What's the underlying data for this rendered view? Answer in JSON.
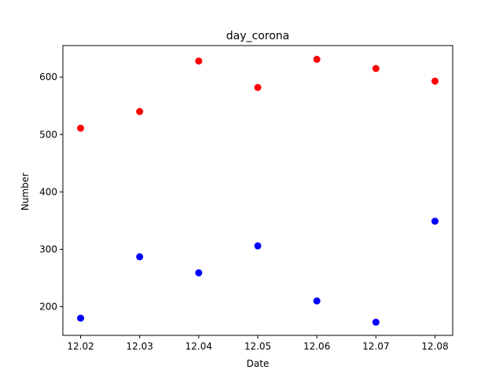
{
  "chart_data": {
    "type": "scatter",
    "title": "day_corona",
    "xlabel": "Date",
    "ylabel": "Number",
    "xlim": [
      12.017,
      12.083
    ],
    "ylim": [
      150,
      655
    ],
    "xticks": [
      "12.02",
      "12.03",
      "12.04",
      "12.05",
      "12.06",
      "12.07",
      "12.08"
    ],
    "yticks": [
      200,
      300,
      400,
      500,
      600
    ],
    "x": [
      12.02,
      12.03,
      12.04,
      12.05,
      12.06,
      12.07,
      12.08
    ],
    "series": [
      {
        "color": "#ff0000",
        "values": [
          511,
          540,
          628,
          582,
          631,
          615,
          593
        ]
      },
      {
        "color": "#0000ff",
        "values": [
          180,
          287,
          259,
          306,
          210,
          173,
          349
        ]
      }
    ],
    "grid": false
  }
}
